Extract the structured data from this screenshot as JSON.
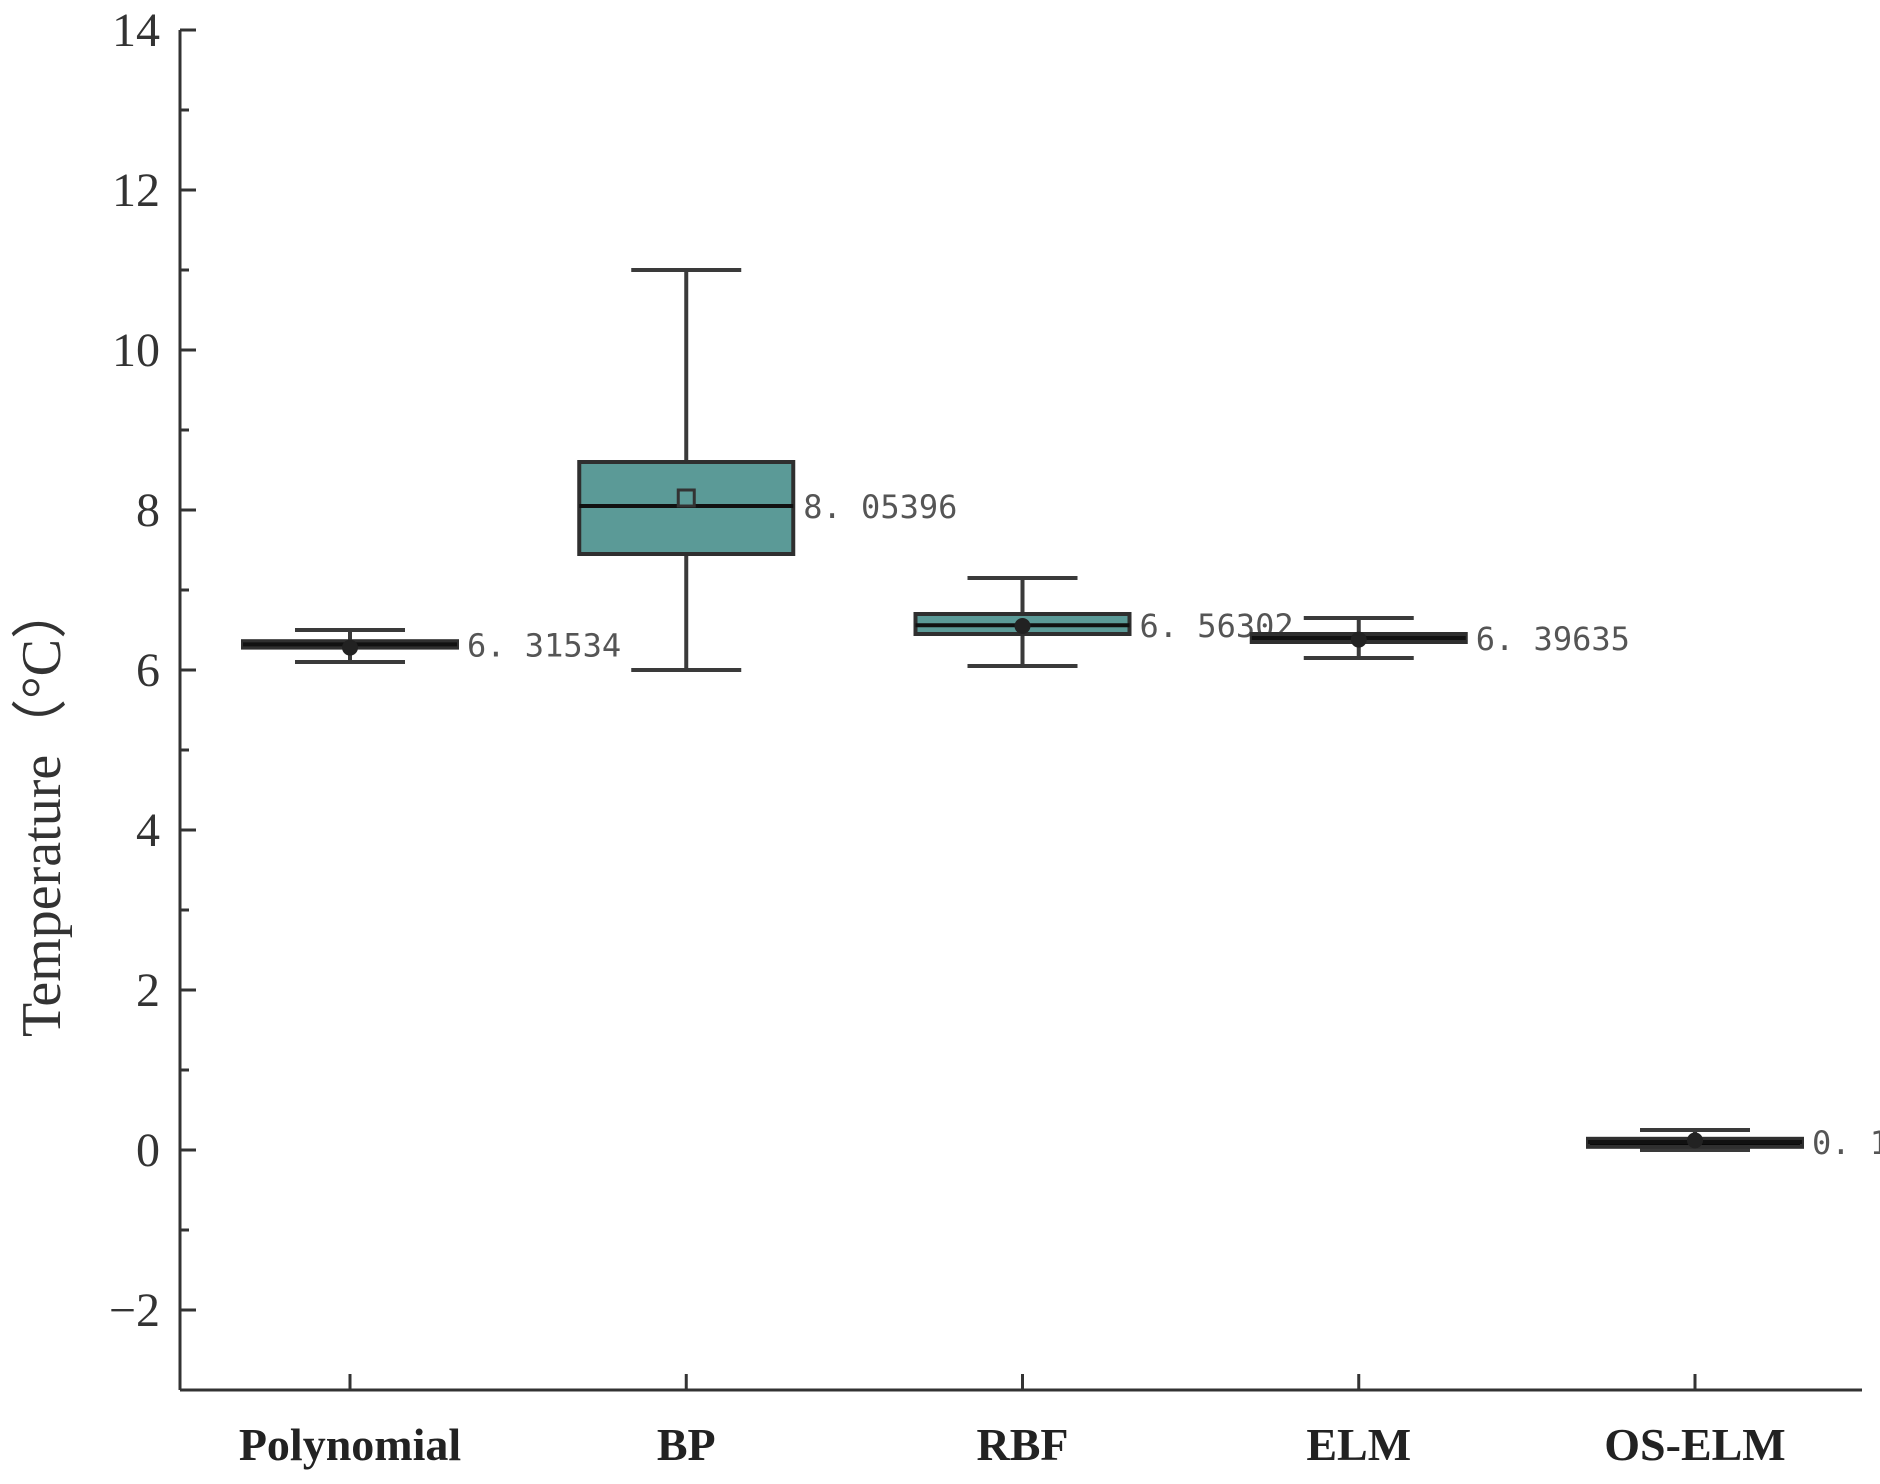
{
  "chart_data": {
    "type": "box",
    "title": "",
    "xlabel": "",
    "ylabel": "Temperature（°C）",
    "ylim": [
      -3,
      14
    ],
    "yticks": [
      -2,
      0,
      2,
      4,
      6,
      8,
      10,
      12,
      14
    ],
    "ytick_labels": [
      "−2",
      "0",
      "2",
      "4",
      "6",
      "8",
      "10",
      "12",
      "14"
    ],
    "categories": [
      "Polynomial",
      "BP",
      "RBF",
      "ELM",
      "OS-ELM"
    ],
    "box_color": "#5b9a97",
    "series": [
      {
        "name": "Polynomial",
        "whisker_low": 6.1,
        "q1": 6.28,
        "median": 6.32,
        "q3": 6.36,
        "whisker_high": 6.5,
        "mean": 6.28,
        "mean_marker": "dot",
        "filled": false,
        "label": "6. 31534"
      },
      {
        "name": "BP",
        "whisker_low": 6.0,
        "q1": 7.45,
        "median": 8.05,
        "q3": 8.6,
        "whisker_high": 11.0,
        "mean": 8.15,
        "mean_marker": "square",
        "filled": true,
        "label": "8. 05396"
      },
      {
        "name": "RBF",
        "whisker_low": 6.05,
        "q1": 6.45,
        "median": 6.56,
        "q3": 6.7,
        "whisker_high": 7.15,
        "mean": 6.55,
        "mean_marker": "dot",
        "filled": true,
        "label": "6. 56302"
      },
      {
        "name": "ELM",
        "whisker_low": 6.15,
        "q1": 6.35,
        "median": 6.4,
        "q3": 6.45,
        "whisker_high": 6.65,
        "mean": 6.38,
        "mean_marker": "dot",
        "filled": false,
        "label": "6. 39635"
      },
      {
        "name": "OS-ELM",
        "whisker_low": 0.0,
        "q1": 0.04,
        "median": 0.1,
        "q3": 0.14,
        "whisker_high": 0.25,
        "mean": 0.12,
        "mean_marker": "dot",
        "filled": false,
        "label": "0. 1"
      }
    ]
  }
}
